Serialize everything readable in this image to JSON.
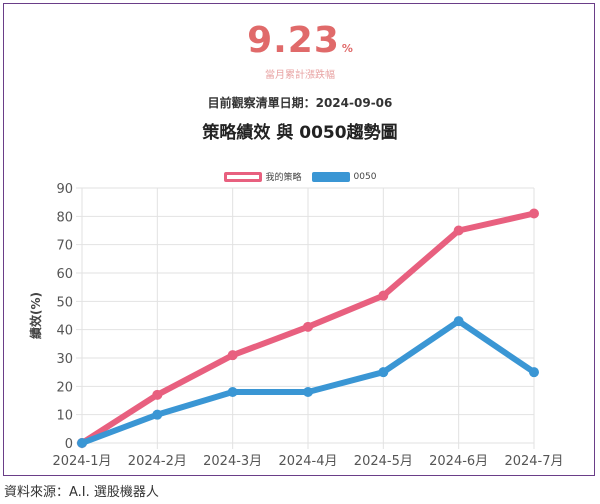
{
  "header": {
    "big_value": "9.23",
    "big_unit": "%",
    "big_label": "當月累計漲跌幅",
    "date_line": "目前觀察清單日期：2024-09-06"
  },
  "source": "資料來源：A.I. 選股機器人",
  "colors": {
    "strategy": "#e8607f",
    "benchmark": "#3a96d4"
  },
  "chart_data": {
    "type": "line",
    "title": "策略績效 與 0050趨勢圖",
    "ylabel": "績效(%)",
    "xlabel": "",
    "categories": [
      "2024-1月",
      "2024-2月",
      "2024-3月",
      "2024-4月",
      "2024-5月",
      "2024-6月",
      "2024-7月"
    ],
    "ylim": [
      0,
      90
    ],
    "yticks": [
      0,
      10,
      20,
      30,
      40,
      50,
      60,
      70,
      80,
      90
    ],
    "grid": true,
    "legend_position": "top",
    "series": [
      {
        "name": "我的策略",
        "values": [
          0,
          17,
          31,
          41,
          52,
          75,
          81
        ]
      },
      {
        "name": "0050",
        "values": [
          0,
          10,
          18,
          18,
          25,
          43,
          25
        ]
      }
    ]
  }
}
